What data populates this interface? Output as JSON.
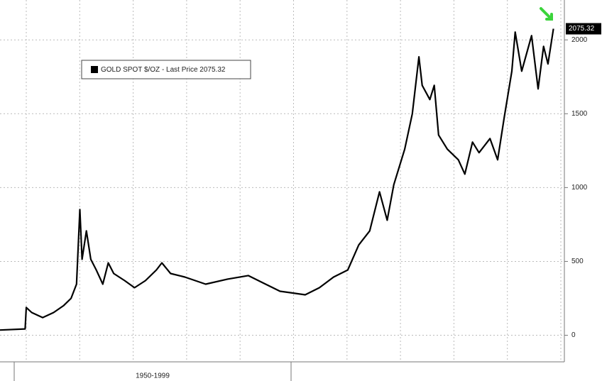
{
  "chart_data": {
    "type": "line",
    "legend_label": "GOLD SPOT $/OZ - Last Price 2075.32",
    "last_price_label": "2075.32",
    "x_label": "1950-1999",
    "x": [
      1972.7,
      1975.0,
      1975.1,
      1975.6,
      1976.6,
      1977.6,
      1978.5,
      1979.2,
      1979.7,
      1980.0,
      1980.2,
      1980.6,
      1981.0,
      1981.5,
      1982.1,
      1982.6,
      1983.1,
      1984.1,
      1985.0,
      1986.0,
      1987.0,
      1987.5,
      1988.3,
      1989.6,
      1991.5,
      1993.5,
      1995.4,
      1996.7,
      1998.3,
      1999.3,
      2000.6,
      2001.9,
      2003.2,
      2004.5,
      2005.5,
      2006.5,
      2007.4,
      2008.1,
      2008.7,
      2009.7,
      2010.4,
      2011.0,
      2011.3,
      2012.0,
      2012.4,
      2012.8,
      2013.6,
      2014.6,
      2015.2,
      2015.9,
      2016.5,
      2017.5,
      2018.2,
      2018.8,
      2019.5,
      2019.8,
      2020.4,
      2021.3,
      2021.9,
      2022.4,
      2022.8,
      2023.3
    ],
    "series": [
      {
        "color": "#000000",
        "values": [
          35,
          43,
          188,
          154,
          120,
          154,
          200,
          250,
          346,
          851,
          514,
          707,
          514,
          442,
          346,
          490,
          418,
          370,
          322,
          370,
          442,
          490,
          418,
          394,
          346,
          380,
          404,
          356,
          298,
          288,
          274,
          322,
          394,
          442,
          611,
          707,
          971,
          779,
          1019,
          1260,
          1500,
          1885,
          1692,
          1596,
          1692,
          1356,
          1260,
          1188,
          1091,
          1308,
          1236,
          1332,
          1188,
          1476,
          1788,
          2053,
          1788,
          2029,
          1668,
          1956,
          1837,
          2075.32
        ]
      }
    ],
    "xlim": [
      1972.7,
      2024.3
    ],
    "ylim": [
      -180,
      2270
    ],
    "yticks": [
      0,
      500,
      1000,
      1500,
      2000
    ],
    "grid": true
  }
}
